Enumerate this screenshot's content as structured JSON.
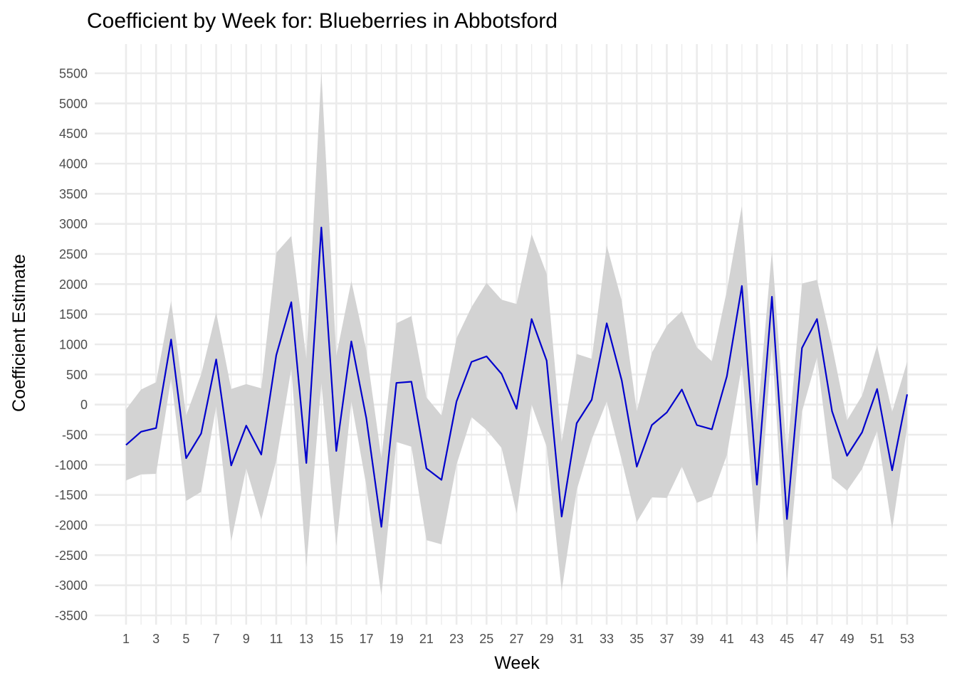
{
  "chart_data": {
    "type": "line",
    "title": "Coefficient by Week for: Blueberries in Abbotsford",
    "xlabel": "Week",
    "ylabel": "Coefficient Estimate",
    "xlim": [
      1,
      53
    ],
    "ylim": [
      -3500,
      5500
    ],
    "x_ticks": [
      1,
      3,
      5,
      7,
      9,
      11,
      13,
      15,
      17,
      19,
      21,
      23,
      25,
      27,
      29,
      31,
      33,
      35,
      37,
      39,
      41,
      43,
      45,
      47,
      49,
      51,
      53
    ],
    "y_ticks": [
      -3500,
      -3000,
      -2500,
      -2000,
      -1500,
      -1000,
      -500,
      0,
      500,
      1000,
      1500,
      2000,
      2500,
      3000,
      3500,
      4000,
      4500,
      5000,
      5500
    ],
    "grid": true,
    "legend": "none",
    "line_color": "#0000cc",
    "band_color": "#d3d3d3",
    "x": [
      1,
      2,
      3,
      4,
      5,
      6,
      7,
      8,
      9,
      10,
      11,
      12,
      13,
      14,
      15,
      16,
      17,
      18,
      19,
      20,
      21,
      22,
      23,
      24,
      25,
      26,
      27,
      28,
      29,
      30,
      31,
      32,
      33,
      34,
      35,
      36,
      37,
      38,
      39,
      40,
      41,
      42,
      43,
      44,
      45,
      46,
      47,
      48,
      49,
      50,
      51,
      52,
      53
    ],
    "estimate": [
      -670,
      -450,
      -390,
      1080,
      -890,
      -480,
      750,
      -1010,
      -350,
      -830,
      820,
      1700,
      -970,
      2940,
      -770,
      1050,
      -230,
      -2030,
      360,
      380,
      -1060,
      -1250,
      50,
      710,
      800,
      510,
      -70,
      1420,
      730,
      -1860,
      -310,
      80,
      1350,
      400,
      -1030,
      -340,
      -130,
      250,
      -340,
      -410,
      470,
      1970,
      -1330,
      1790,
      -1900,
      940,
      1420,
      -110,
      -850,
      -460,
      260,
      -1090,
      170
    ],
    "lower": [
      -1260,
      -1160,
      -1150,
      440,
      -1600,
      -1450,
      -30,
      -2270,
      -1060,
      -1910,
      -930,
      600,
      -2700,
      360,
      -2350,
      50,
      -1350,
      -3170,
      -620,
      -700,
      -2250,
      -2320,
      -1000,
      -210,
      -420,
      -720,
      -1810,
      0,
      -700,
      -3090,
      -1420,
      -580,
      50,
      -930,
      -1950,
      -1540,
      -1550,
      -1030,
      -1630,
      -1530,
      -840,
      650,
      -2330,
      1000,
      -2940,
      -120,
      780,
      -1220,
      -1430,
      -1070,
      -440,
      -2070,
      -370
    ],
    "upper": [
      -80,
      250,
      370,
      1720,
      -180,
      500,
      1530,
      260,
      340,
      270,
      2520,
      2800,
      760,
      5520,
      810,
      2050,
      900,
      -890,
      1350,
      1470,
      120,
      -180,
      1100,
      1620,
      2020,
      1740,
      1670,
      2830,
      2170,
      -620,
      840,
      760,
      2640,
      1720,
      -110,
      860,
      1310,
      1550,
      950,
      720,
      1890,
      3300,
      -320,
      2560,
      -850,
      2010,
      2070,
      980,
      -260,
      150,
      980,
      -120,
      710
    ]
  }
}
